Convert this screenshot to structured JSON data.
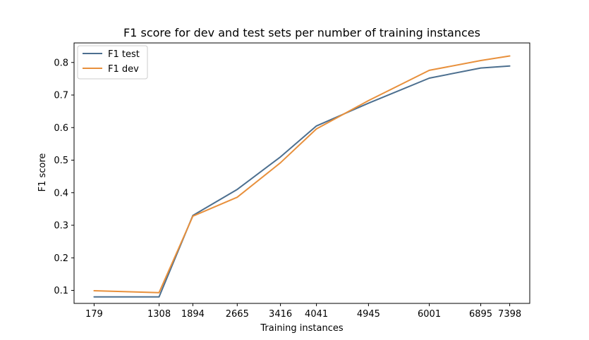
{
  "chart_data": {
    "type": "line",
    "title": "F1 score for dev and test sets per number of training instances",
    "xlabel": "Training instances",
    "ylabel": "F1 score",
    "x": [
      179,
      1308,
      1894,
      2665,
      3416,
      4041,
      4945,
      6001,
      6895,
      7398
    ],
    "x_tick_labels": [
      "179",
      "1308",
      "1894",
      "2665",
      "3416",
      "4041",
      "4945",
      "6001",
      "6895",
      "7398"
    ],
    "y_ticks": [
      0.1,
      0.2,
      0.3,
      0.4,
      0.5,
      0.6,
      0.7,
      0.8
    ],
    "y_tick_labels": [
      "0.1",
      "0.2",
      "0.3",
      "0.4",
      "0.5",
      "0.6",
      "0.7",
      "0.8"
    ],
    "xlim": [
      -169,
      7746
    ],
    "ylim": [
      0.06,
      0.86
    ],
    "grid": false,
    "legend_position": "top-left",
    "series": [
      {
        "name": "F1 test",
        "color": "#4c6f8f",
        "values": [
          0.08,
          0.08,
          0.33,
          0.41,
          0.51,
          0.605,
          0.675,
          0.752,
          0.783,
          0.789
        ]
      },
      {
        "name": "F1 dev",
        "color": "#e8903c",
        "values": [
          0.099,
          0.093,
          0.328,
          0.386,
          0.492,
          0.596,
          0.683,
          0.776,
          0.806,
          0.82
        ]
      }
    ]
  }
}
